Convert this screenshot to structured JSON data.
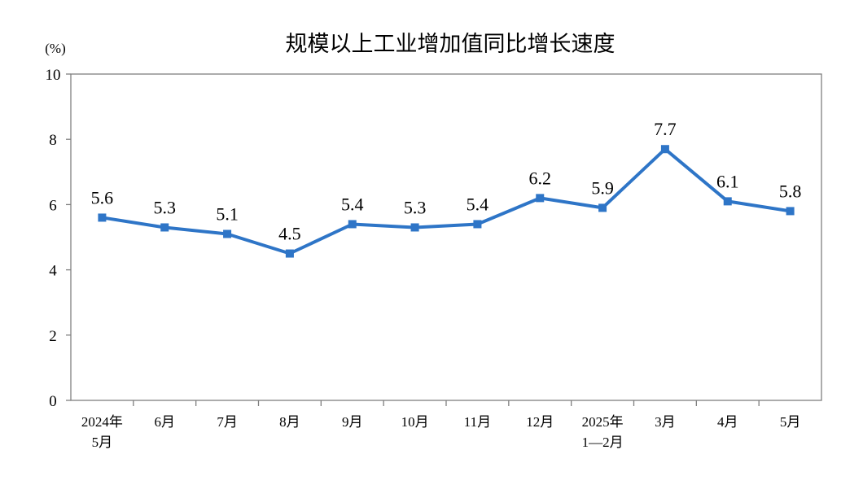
{
  "chart_data": {
    "type": "line",
    "title": "规模以上工业增加值同比增长速度",
    "unit_label": "(%)",
    "categories": [
      [
        "2024年",
        "5月"
      ],
      [
        "6月"
      ],
      [
        "7月"
      ],
      [
        "8月"
      ],
      [
        "9月"
      ],
      [
        "10月"
      ],
      [
        "11月"
      ],
      [
        "12月"
      ],
      [
        "2025年",
        "1—2月"
      ],
      [
        "3月"
      ],
      [
        "4月"
      ],
      [
        "5月"
      ]
    ],
    "values": [
      5.6,
      5.3,
      5.1,
      4.5,
      5.4,
      5.3,
      5.4,
      6.2,
      5.9,
      7.7,
      6.1,
      5.8
    ],
    "data_labels": [
      "5.6",
      "5.3",
      "5.1",
      "4.5",
      "5.4",
      "5.3",
      "5.4",
      "6.2",
      "5.9",
      "7.7",
      "6.1",
      "5.8"
    ],
    "ylim": [
      0,
      10
    ],
    "yticks": [
      "0",
      "2",
      "4",
      "6",
      "8",
      "10"
    ],
    "grid": false,
    "legend": "none",
    "colors": {
      "line": "#2e75c7",
      "marker": "#2e75c7",
      "axis": "#7f7f7f",
      "text": "#000000"
    }
  }
}
